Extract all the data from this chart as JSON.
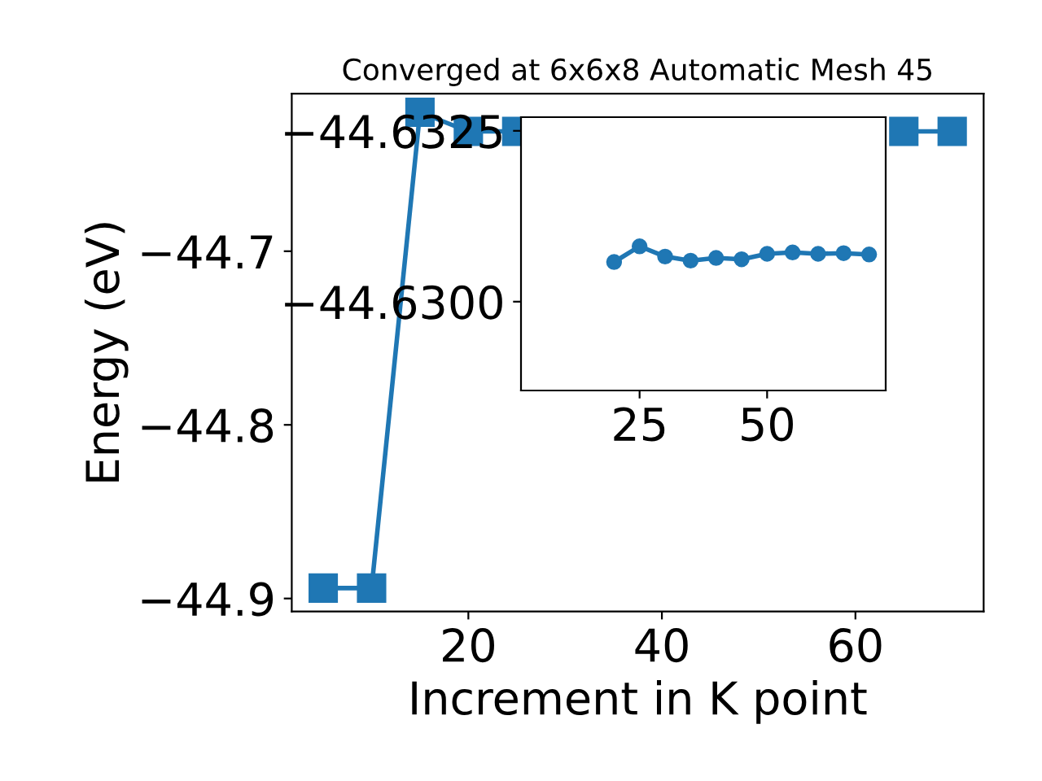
{
  "chart_data": [
    {
      "type": "line",
      "title": "Converged at 6x6x8 Automatic Mesh 45",
      "xlabel": "Increment in K point",
      "ylabel": "Energy (eV)",
      "marker": "square",
      "line_style": "solid",
      "x": [
        5,
        10,
        15,
        20,
        25,
        30,
        35,
        40,
        45,
        50,
        55,
        60,
        65,
        70
      ],
      "series": [
        {
          "color": "#1f77b4",
          "values": [
            -44.894,
            -44.894,
            -44.62,
            -44.631,
            -44.631,
            null,
            null,
            null,
            null,
            null,
            null,
            null,
            -44.631,
            -44.631
          ]
        }
      ],
      "xlim": [
        1.75,
        73.25
      ],
      "ylim": [
        -44.9075,
        -44.6093
      ],
      "xticks": [
        20,
        40,
        60
      ],
      "yticks": [
        -44.9,
        -44.8,
        -44.7
      ]
    },
    {
      "type": "line",
      "marker": "circle",
      "line_style": "solid",
      "x": [
        20,
        25,
        30,
        35,
        40,
        45,
        50,
        55,
        60,
        65,
        70
      ],
      "series": [
        {
          "color": "#1f77b4",
          "values": [
            -44.63058,
            -44.63081,
            -44.63066,
            -44.6306,
            -44.63064,
            -44.63062,
            -44.6307,
            -44.63072,
            -44.6307,
            -44.63071,
            -44.63069
          ]
        }
      ],
      "xlim": [
        1.75,
        73.25
      ],
      "ylim": [
        -44.6287,
        -44.6327
      ],
      "xticks": [
        25,
        50
      ],
      "yticks": [
        -44.6325,
        {
          "value": -44.63,
          "label": "−44.6300"
        }
      ]
    }
  ]
}
